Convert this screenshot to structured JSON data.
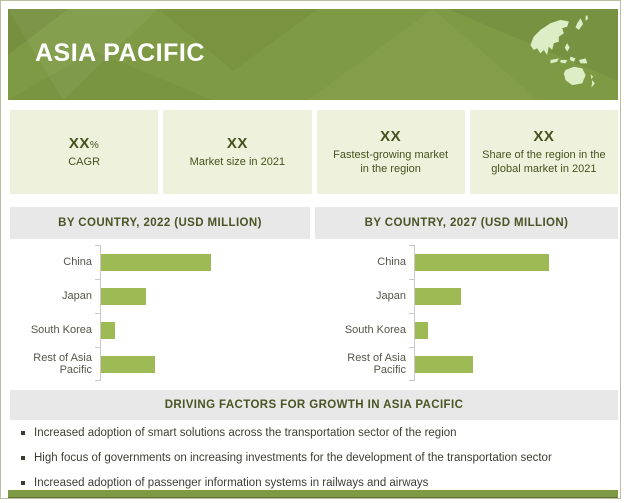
{
  "header": {
    "title": "ASIA PACIFIC",
    "bg_color": "#7e9a44",
    "title_color": "#ffffff",
    "map_icon": "asia-pacific-map",
    "map_color": "#ddeec6"
  },
  "stats": {
    "bg_color": "#eef2dd",
    "text_color": "#46521d",
    "items": [
      {
        "value": "XX",
        "suffix": "%",
        "label": "CAGR"
      },
      {
        "value": "XX",
        "suffix": "",
        "label": "Market size in 2021"
      },
      {
        "value": "XX",
        "suffix": "",
        "label": "Fastest-growing market in the region"
      },
      {
        "value": "XX",
        "suffix": "",
        "label": "Share of the region in the global market in 2021"
      }
    ]
  },
  "chart_data": [
    {
      "type": "bar",
      "orientation": "horizontal",
      "title": "BY COUNTRY, 2022 (USD MILLION)",
      "categories": [
        "China",
        "Japan",
        "South Korea",
        "Rest of Asia Pacific"
      ],
      "values": [
        53,
        22,
        7,
        26
      ],
      "xlim": [
        0,
        100
      ],
      "xlabel": "",
      "ylabel": "",
      "grid": false,
      "legend": false,
      "bar_color": "#9dba55",
      "header_bg": "#e8e8e8"
    },
    {
      "type": "bar",
      "orientation": "horizontal",
      "title": "BY COUNTRY, 2027 (USD MILLION)",
      "categories": [
        "China",
        "Japan",
        "South Korea",
        "Rest of Asia Pacific"
      ],
      "values": [
        66,
        23,
        7,
        29
      ],
      "xlim": [
        0,
        100
      ],
      "xlabel": "",
      "ylabel": "",
      "grid": false,
      "legend": false,
      "bar_color": "#9dba55",
      "header_bg": "#e8e8e8"
    }
  ],
  "driving_factors": {
    "title": "DRIVING FACTORS FOR GROWTH IN ASIA PACIFIC",
    "bullets": [
      "Increased adoption of smart solutions across the transportation sector of the region",
      "High focus of governments on increasing investments for the development of the transportation sector",
      "Increased adoption of passenger information systems in railways and airways"
    ]
  },
  "colors": {
    "accent_green": "#7e9a44",
    "bar_green": "#9dba55",
    "stat_box_bg": "#eef2dd",
    "section_header_bg": "#e8e8e8",
    "dark_olive_text": "#4a5424",
    "frame_border": "#b9bfa0"
  }
}
